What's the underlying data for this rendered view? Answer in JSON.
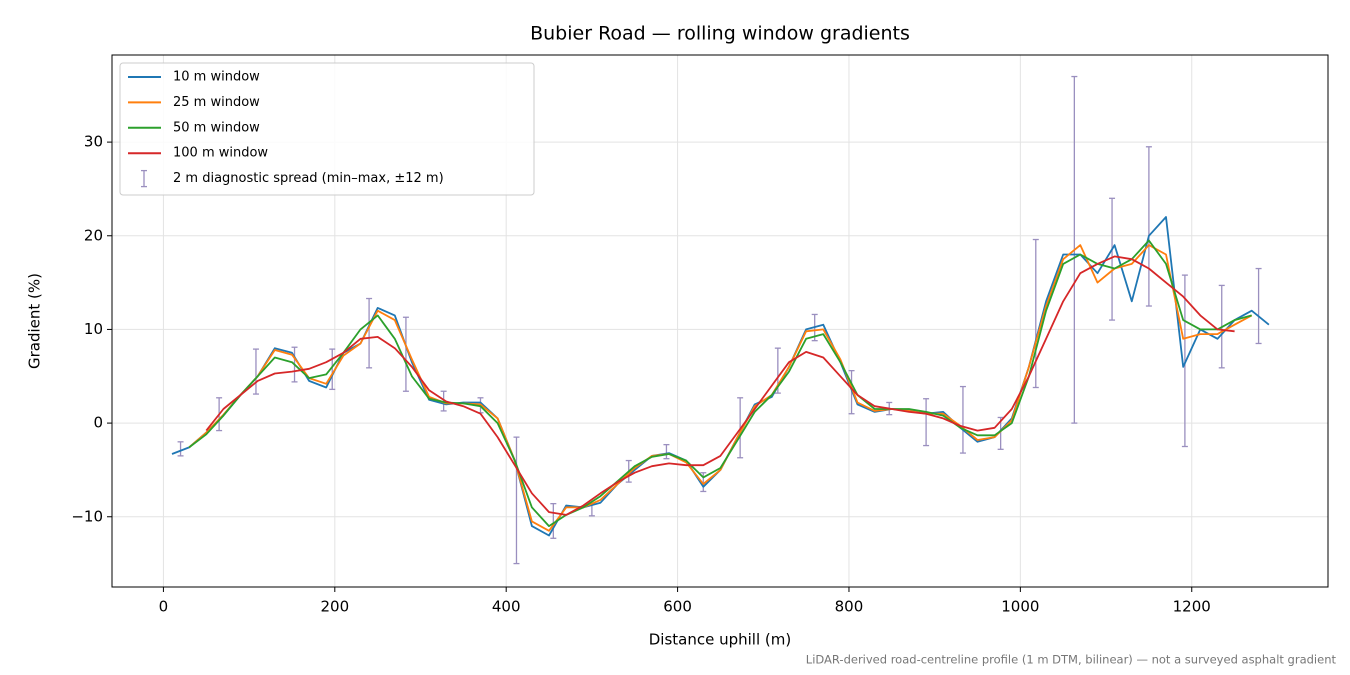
{
  "chart_data": {
    "type": "line",
    "title": "Bubier Road — rolling window gradients",
    "x_label": "Distance uphill (m)",
    "y_label": "Gradient (%)",
    "footnote": "LiDAR-derived road-centreline profile (1 m DTM, bilinear) — not a surveyed asphalt gradient",
    "xlim": [
      -60,
      1359
    ],
    "ylim": [
      -17.5,
      39.3
    ],
    "xticks": [
      0,
      200,
      400,
      600,
      800,
      1000,
      1200
    ],
    "yticks": [
      {
        "value": -10,
        "label": "−10"
      },
      0,
      10,
      20,
      30
    ],
    "grid": true,
    "legend": "upper left",
    "x": [
      10,
      30,
      50,
      70,
      90,
      110,
      130,
      150,
      170,
      190,
      210,
      230,
      250,
      270,
      290,
      310,
      330,
      350,
      370,
      390,
      410,
      430,
      450,
      470,
      490,
      510,
      530,
      550,
      570,
      590,
      610,
      630,
      650,
      670,
      690,
      710,
      730,
      750,
      770,
      790,
      810,
      830,
      850,
      870,
      890,
      910,
      930,
      950,
      970,
      990,
      1010,
      1030,
      1050,
      1070,
      1090,
      1110,
      1130,
      1150,
      1170,
      1190,
      1210,
      1230,
      1250,
      1270,
      1290
    ],
    "series": [
      {
        "name": "10 m window",
        "color": "#1f77b4",
        "values": [
          -3.3,
          -2.6,
          -1.0,
          0.8,
          3.0,
          5.0,
          8.0,
          7.5,
          4.5,
          3.8,
          7.5,
          8.5,
          12.3,
          11.5,
          6.5,
          2.5,
          2.0,
          2.2,
          2.2,
          0.5,
          -4.0,
          -11.0,
          -12.0,
          -8.8,
          -9.0,
          -8.5,
          -6.5,
          -5.0,
          -3.5,
          -3.2,
          -4.0,
          -6.8,
          -5.0,
          -1.5,
          2.0,
          2.8,
          6.0,
          10.0,
          10.5,
          6.5,
          2.0,
          1.2,
          1.5,
          1.4,
          1.0,
          1.2,
          -0.5,
          -2.0,
          -1.5,
          0.5,
          6.0,
          13.0,
          18.0,
          18.0,
          16.0,
          19.0,
          13.0,
          20.0,
          22.0,
          6.0,
          10.0,
          9.0,
          11.0,
          12.0,
          10.5
        ]
      },
      {
        "name": "25 m window",
        "color": "#ff7f0e",
        "values": [
          null,
          -2.6,
          -1.0,
          0.9,
          3.0,
          5.0,
          7.8,
          7.3,
          4.8,
          4.2,
          7.2,
          8.5,
          12.0,
          11.0,
          6.8,
          2.8,
          2.1,
          2.1,
          2.0,
          0.5,
          -4.0,
          -10.5,
          -11.5,
          -9.0,
          -9.0,
          -8.2,
          -6.5,
          -4.8,
          -3.5,
          -3.3,
          -4.2,
          -6.5,
          -5.0,
          -1.5,
          1.8,
          3.0,
          6.0,
          9.8,
          10.0,
          6.8,
          2.2,
          1.3,
          1.5,
          1.3,
          1.0,
          1.0,
          -0.3,
          -1.8,
          -1.5,
          0.3,
          6.0,
          12.5,
          17.5,
          19.0,
          15.0,
          16.5,
          17.0,
          19.0,
          18.0,
          9.0,
          9.5,
          9.5,
          10.5,
          11.5,
          null
        ]
      },
      {
        "name": "50 m window",
        "color": "#2ca02c",
        "values": [
          null,
          -2.6,
          -1.2,
          0.8,
          3.0,
          5.0,
          7.0,
          6.5,
          4.8,
          5.2,
          7.5,
          10.0,
          11.5,
          9.0,
          5.0,
          2.6,
          2.2,
          2.1,
          1.8,
          0.0,
          -4.0,
          -9.0,
          -11.0,
          -9.8,
          -9.0,
          -7.8,
          -6.2,
          -4.6,
          -3.6,
          -3.3,
          -4.0,
          -5.8,
          -4.8,
          -1.8,
          1.2,
          3.0,
          5.5,
          9.0,
          9.5,
          6.5,
          3.0,
          1.5,
          1.5,
          1.5,
          1.2,
          0.8,
          -0.5,
          -1.3,
          -1.3,
          0.0,
          5.0,
          12.0,
          17.0,
          18.0,
          17.0,
          16.5,
          17.5,
          19.5,
          17.0,
          11.0,
          10.0,
          10.0,
          11.0,
          11.5,
          null
        ]
      },
      {
        "name": "100 m window",
        "color": "#d62728",
        "values": [
          null,
          null,
          -0.8,
          1.5,
          3.0,
          4.5,
          5.3,
          5.5,
          5.8,
          6.5,
          7.5,
          9.0,
          9.2,
          8.0,
          6.0,
          3.5,
          2.3,
          1.8,
          1.0,
          -1.5,
          -4.5,
          -7.5,
          -9.5,
          -9.8,
          -8.8,
          -7.5,
          -6.3,
          -5.3,
          -4.6,
          -4.3,
          -4.5,
          -4.5,
          -3.5,
          -1.0,
          1.5,
          4.0,
          6.5,
          7.6,
          7.0,
          5.0,
          3.0,
          1.8,
          1.5,
          1.2,
          1.0,
          0.5,
          -0.3,
          -0.8,
          -0.5,
          1.5,
          5.0,
          9.0,
          13.0,
          16.0,
          17.0,
          17.8,
          17.5,
          16.5,
          15.0,
          13.5,
          11.5,
          10.0,
          9.8,
          null,
          null
        ]
      }
    ],
    "spread": {
      "name": "2 m diagnostic spread (min–max, ±12 m)",
      "color": "#9a8fbf",
      "x": [
        20,
        65,
        108,
        153,
        197,
        240,
        283,
        327,
        370,
        412,
        455,
        500,
        543,
        587,
        630,
        673,
        717,
        760,
        803,
        847,
        890,
        933,
        977,
        1018,
        1063,
        1107,
        1150,
        1192,
        1235,
        1278
      ],
      "low": [
        -3.5,
        -0.8,
        3.1,
        4.4,
        3.6,
        5.9,
        3.4,
        1.3,
        1.1,
        -15.0,
        -12.3,
        -9.9,
        -6.3,
        -3.8,
        -7.3,
        -3.7,
        3.2,
        8.8,
        1.0,
        0.9,
        -2.4,
        -3.2,
        -2.8,
        3.8,
        0.0,
        11.0,
        12.5,
        -2.5,
        5.9,
        8.5
      ],
      "high": [
        -2.0,
        2.7,
        7.9,
        8.1,
        7.9,
        13.3,
        11.3,
        3.4,
        2.7,
        -1.5,
        -8.6,
        -8.6,
        -4.0,
        -2.3,
        -5.3,
        2.7,
        8.0,
        11.6,
        5.6,
        2.2,
        2.6,
        3.9,
        0.6,
        19.6,
        37.0,
        24.0,
        29.5,
        15.8,
        14.7,
        16.5
      ]
    }
  }
}
